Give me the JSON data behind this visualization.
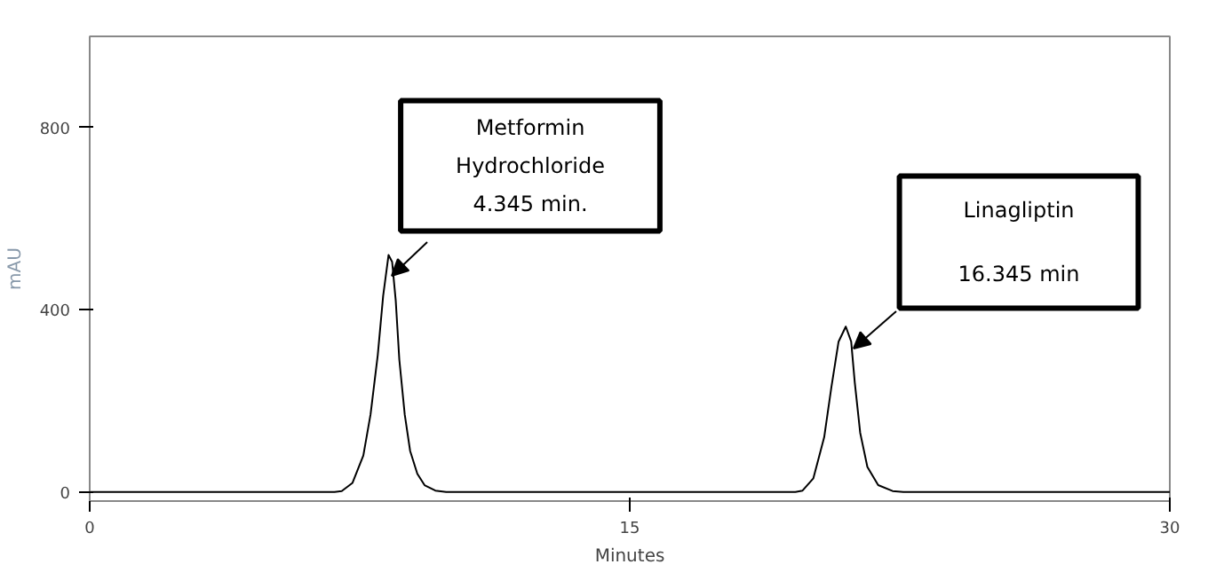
{
  "chart_data": {
    "type": "line",
    "xlabel": "Minutes",
    "ylabel": "mAU",
    "xlim": [
      0,
      30
    ],
    "ylim": [
      -20,
      1000
    ],
    "xticks": [
      0,
      15,
      30
    ],
    "yticks": [
      0,
      400,
      800
    ],
    "grid": false,
    "marker": "none",
    "line_style": "solid",
    "x": [
      0,
      6.8,
      7.0,
      7.3,
      7.6,
      7.8,
      8.0,
      8.15,
      8.3,
      8.4,
      8.5,
      8.6,
      8.75,
      8.9,
      9.1,
      9.3,
      9.6,
      9.9,
      19.6,
      19.8,
      20.1,
      20.4,
      20.6,
      20.8,
      21.0,
      21.15,
      21.25,
      21.4,
      21.6,
      21.9,
      22.3,
      22.6,
      30
    ],
    "series": [
      {
        "color": "#000000",
        "values": [
          0,
          0,
          2,
          20,
          80,
          170,
          300,
          430,
          520,
          505,
          420,
          290,
          170,
          90,
          40,
          15,
          3,
          0,
          0,
          3,
          30,
          120,
          230,
          330,
          363,
          330,
          240,
          130,
          55,
          15,
          2,
          0,
          0
        ]
      }
    ],
    "annotations": [
      "Metformin\nHydrochloride\n4.345 min.",
      "Linagliptin\n16.345 min"
    ]
  }
}
